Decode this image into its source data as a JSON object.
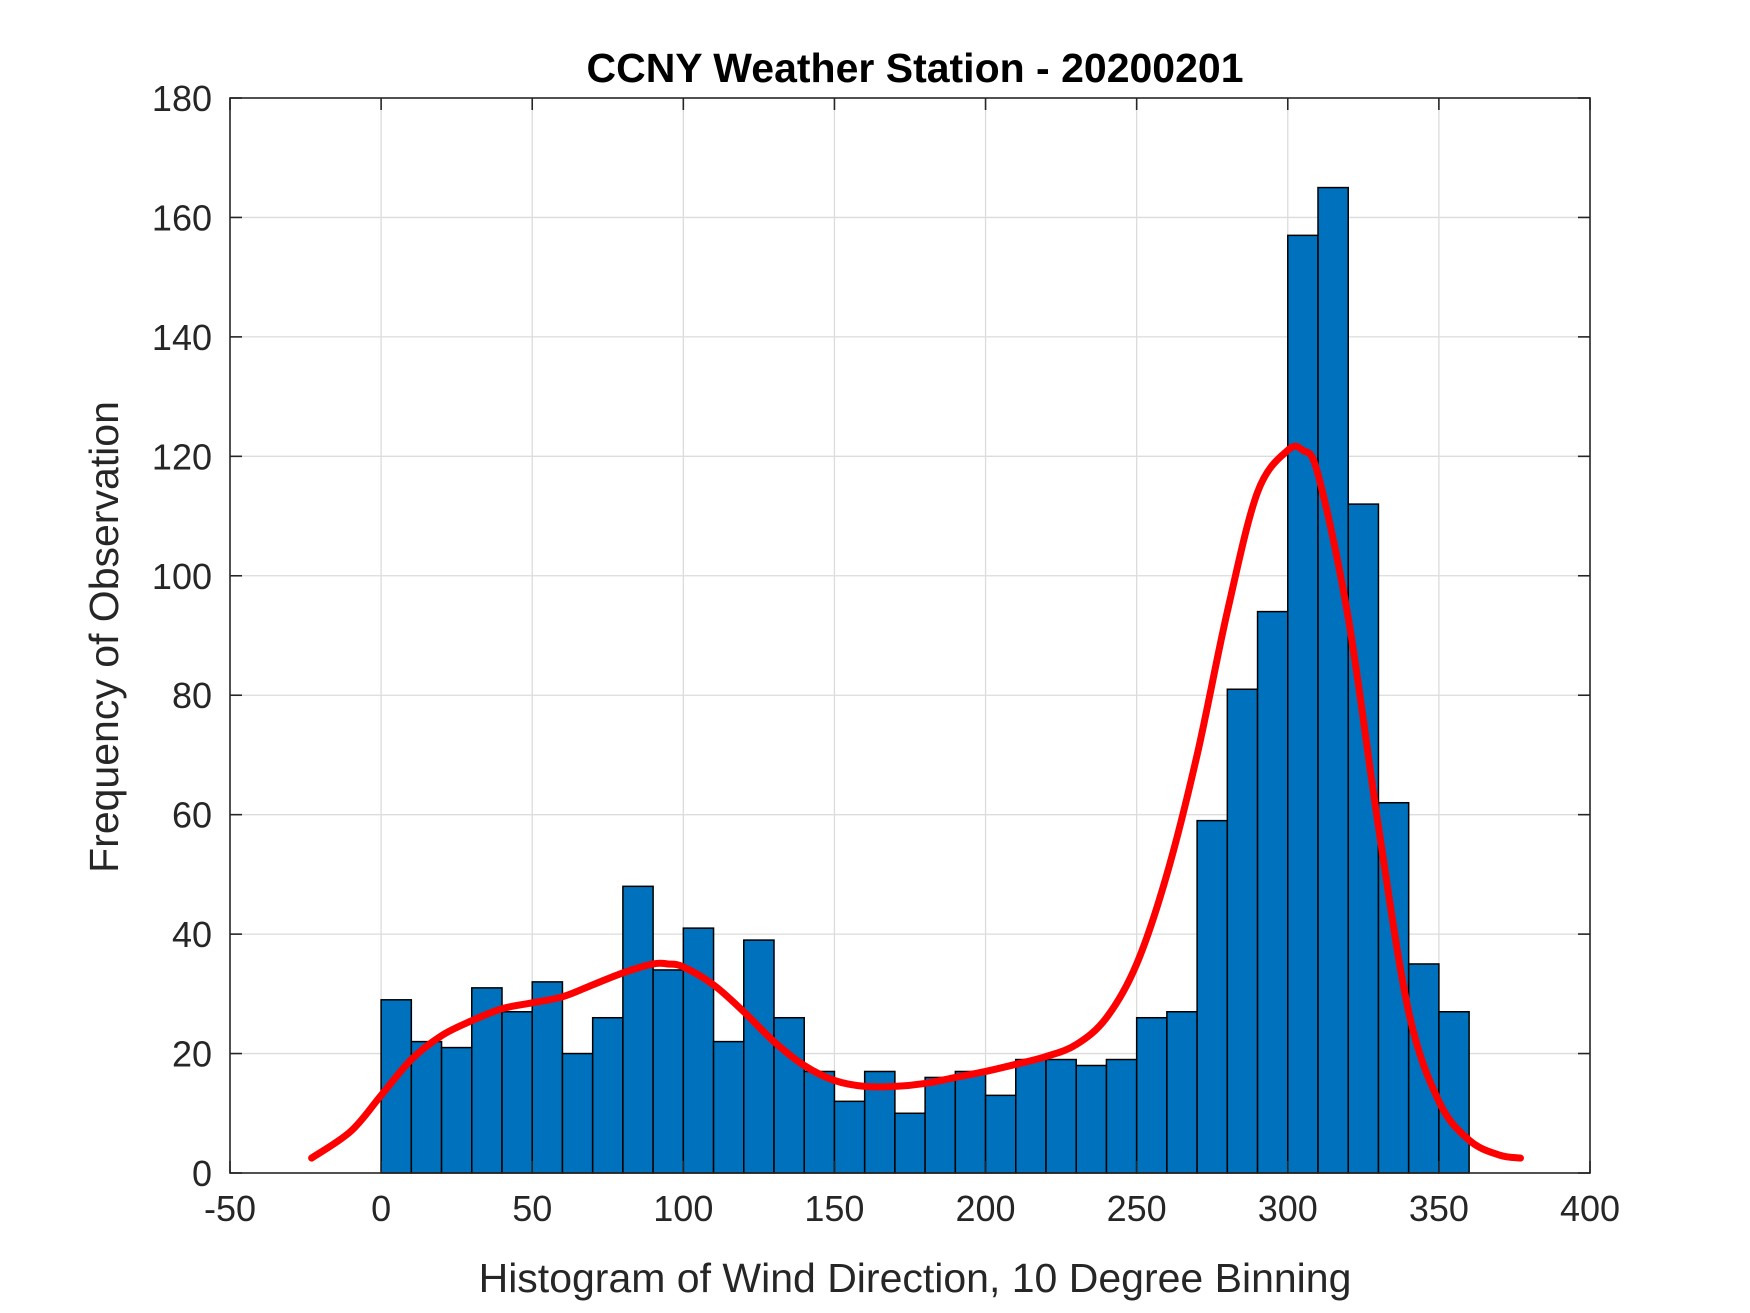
{
  "chart_data": {
    "type": "bar",
    "title": "CCNY Weather Station - 20200201",
    "xlabel": "Histogram of Wind Direction, 10 Degree Binning",
    "ylabel": "Frequency of Observation",
    "xlim": [
      -50,
      400
    ],
    "ylim": [
      0,
      180
    ],
    "xticks": [
      -50,
      0,
      50,
      100,
      150,
      200,
      250,
      300,
      350,
      400
    ],
    "yticks": [
      0,
      20,
      40,
      60,
      80,
      100,
      120,
      140,
      160,
      180
    ],
    "grid": true,
    "bar_color": "#0072BD",
    "bin_width": 10,
    "bin_edges_start": [
      0,
      10,
      20,
      30,
      40,
      50,
      60,
      70,
      80,
      90,
      100,
      110,
      120,
      130,
      140,
      150,
      160,
      170,
      180,
      190,
      200,
      210,
      220,
      230,
      240,
      250,
      260,
      270,
      280,
      290,
      300,
      310,
      320,
      330,
      340,
      350
    ],
    "values": [
      29,
      22,
      21,
      31,
      27,
      32,
      20,
      26,
      48,
      34,
      41,
      22,
      39,
      26,
      17,
      12,
      17,
      10,
      16,
      17,
      13,
      19,
      19,
      18,
      19,
      26,
      27,
      59,
      81,
      94,
      157,
      165,
      112,
      62,
      35,
      27
    ],
    "fit_curve": {
      "color": "#FF0000",
      "x": [
        -23,
        -10,
        0,
        10,
        20,
        30,
        40,
        50,
        60,
        70,
        80,
        90,
        95,
        100,
        110,
        120,
        130,
        140,
        150,
        160,
        170,
        180,
        190,
        200,
        210,
        220,
        230,
        240,
        250,
        260,
        270,
        280,
        290,
        300,
        305,
        310,
        320,
        330,
        340,
        350,
        360,
        370,
        377
      ],
      "y": [
        2.5,
        7,
        13,
        19,
        23,
        25.5,
        27.5,
        28.5,
        29.5,
        31.5,
        33.5,
        35,
        35,
        34.5,
        31.5,
        27,
        22,
        18,
        15.5,
        14.5,
        14.5,
        15,
        16,
        17,
        18.2,
        19.5,
        21.5,
        26,
        35,
        50,
        70,
        94,
        114,
        121,
        121,
        117,
        93,
        58,
        27,
        12,
        5.5,
        3,
        2.5
      ]
    }
  }
}
